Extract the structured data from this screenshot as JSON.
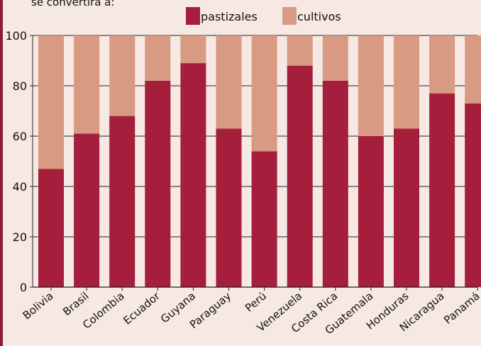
{
  "caption": "se convertirá a:",
  "colors": {
    "pastizales": "#a51f3c",
    "cultivos": "#d89a82",
    "background": "#f6e8e3",
    "frame": "#8c1c35"
  },
  "chart_data": {
    "type": "bar",
    "stacked": true,
    "title": "",
    "xlabel": "",
    "ylabel": "",
    "ylim": [
      0,
      100
    ],
    "yticks": [
      0,
      20,
      40,
      60,
      80,
      100
    ],
    "grid": true,
    "legend_position": "top",
    "categories": [
      "Bolivia",
      "Brasil",
      "Colombia",
      "Ecuador",
      "Guyana",
      "Paraguay",
      "Perú",
      "Venezuela",
      "Costa Rica",
      "Guatemala",
      "Honduras",
      "Nicaragua",
      "Panamá"
    ],
    "series": [
      {
        "name": "pastizales",
        "values": [
          47,
          61,
          68,
          82,
          89,
          63,
          54,
          88,
          82,
          60,
          63,
          77,
          73
        ]
      },
      {
        "name": "cultivos",
        "values": [
          53,
          39,
          32,
          18,
          11,
          37,
          46,
          12,
          18,
          40,
          37,
          23,
          27
        ]
      }
    ]
  }
}
